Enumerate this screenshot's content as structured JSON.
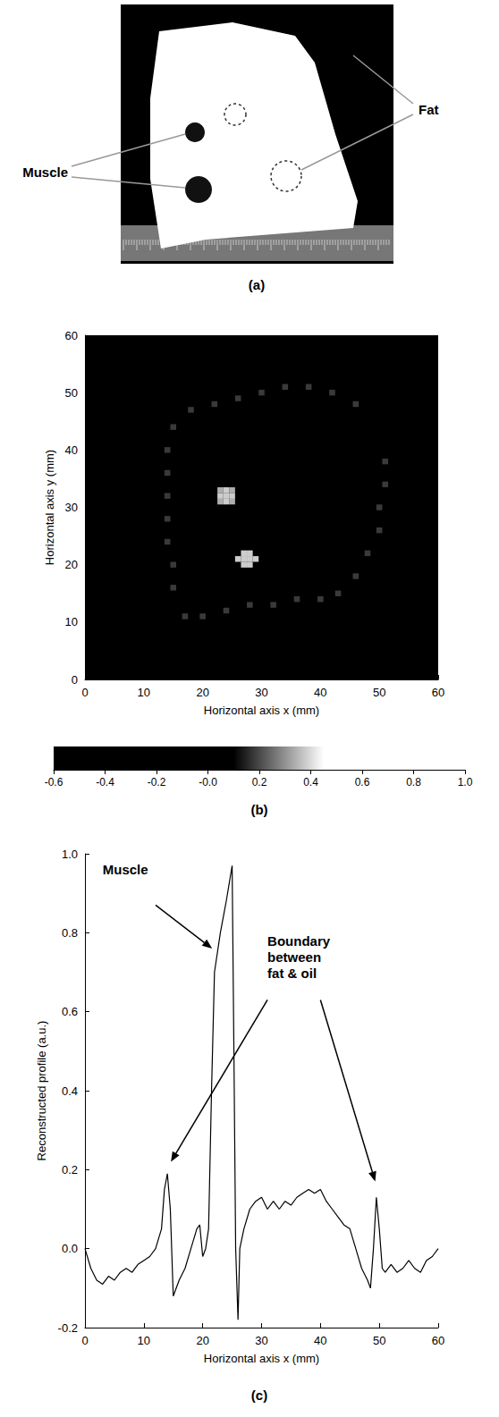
{
  "photo": {
    "label": "(a)",
    "texts": [
      "Muscle",
      "Fat"
    ]
  },
  "chart_data": [
    {
      "label": "(b)",
      "type": "heatmap",
      "x_label": "Horizontal axis x (mm)",
      "y_label": "Horizontal axis y (mm)",
      "xlim": [
        0,
        60
      ],
      "ylim": [
        0,
        60
      ],
      "xticks": [
        0,
        10,
        20,
        30,
        40,
        50,
        60
      ],
      "yticks": [
        0,
        10,
        20,
        30,
        40,
        50,
        60
      ],
      "cells": [
        [
          23,
          31,
          0.4
        ],
        [
          24,
          31,
          0.7
        ],
        [
          25,
          31,
          0.4
        ],
        [
          23,
          32,
          0.7
        ],
        [
          24,
          32,
          1.0
        ],
        [
          25,
          32,
          0.7
        ],
        [
          23,
          33,
          0.4
        ],
        [
          24,
          33,
          0.7
        ],
        [
          25,
          33,
          0.4
        ],
        [
          26,
          21,
          0.6
        ],
        [
          27,
          20,
          0.5
        ],
        [
          28,
          20,
          0.5
        ],
        [
          27,
          21,
          1.0
        ],
        [
          28,
          21,
          1.0
        ],
        [
          29,
          21,
          0.6
        ],
        [
          27,
          22,
          0.5
        ],
        [
          28,
          22,
          0.5
        ],
        [
          15,
          44,
          0.2
        ],
        [
          14,
          40,
          0.2
        ],
        [
          14,
          36,
          0.2
        ],
        [
          14,
          32,
          0.2
        ],
        [
          14,
          28,
          0.2
        ],
        [
          14,
          24,
          0.2
        ],
        [
          15,
          20,
          0.2
        ],
        [
          15,
          16,
          0.2
        ],
        [
          17,
          11,
          0.2
        ],
        [
          20,
          11,
          0.2
        ],
        [
          24,
          12,
          0.2
        ],
        [
          28,
          13,
          0.2
        ],
        [
          32,
          13,
          0.2
        ],
        [
          36,
          14,
          0.2
        ],
        [
          40,
          14,
          0.2
        ],
        [
          43,
          15,
          0.2
        ],
        [
          46,
          18,
          0.2
        ],
        [
          48,
          22,
          0.2
        ],
        [
          50,
          26,
          0.2
        ],
        [
          50,
          30,
          0.2
        ],
        [
          51,
          34,
          0.2
        ],
        [
          51,
          38,
          0.2
        ],
        [
          18,
          47,
          0.2
        ],
        [
          22,
          48,
          0.2
        ],
        [
          26,
          49,
          0.2
        ],
        [
          30,
          50,
          0.2
        ],
        [
          34,
          51,
          0.2
        ],
        [
          38,
          51,
          0.2
        ],
        [
          42,
          50,
          0.2
        ],
        [
          46,
          48,
          0.2
        ]
      ],
      "colorbar": {
        "range": [
          -0.6,
          1.0
        ],
        "ticks": [
          -0.6,
          -0.4,
          -0.2,
          {
            "value": 0,
            "label": "-0.0"
          },
          0.2,
          0.4,
          0.6,
          0.8,
          {
            "value": 1.0,
            "label": "1.0"
          }
        ],
        "colormap": [
          [
            -0.6,
            "#000000"
          ],
          [
            0.1,
            "#000000"
          ],
          [
            0.45,
            "#ffffff"
          ],
          [
            1.0,
            "#ffffff"
          ]
        ]
      }
    },
    {
      "label": "(c)",
      "type": "line",
      "x_label": "Horizontal axis x (mm)",
      "y_label": "Reconstructed profile (a.u.)",
      "xlim": [
        0,
        60
      ],
      "ylim": [
        -0.2,
        1.0
      ],
      "xticks": [
        0,
        10,
        20,
        30,
        40,
        50,
        60
      ],
      "yticks": [
        -0.2,
        {
          "value": 0,
          "label": "0.0"
        },
        0.2,
        0.4,
        0.6,
        0.8,
        {
          "value": 1.0,
          "label": "1.0"
        }
      ],
      "x": [
        0,
        1,
        2,
        3,
        4,
        5,
        6,
        7,
        8,
        9,
        10,
        11,
        12,
        13,
        13.5,
        14,
        14.5,
        15,
        16,
        17,
        18,
        19,
        19.5,
        20,
        20.5,
        21,
        21.5,
        22,
        23,
        24,
        25,
        25.3,
        25.6,
        26,
        26.3,
        27,
        28,
        29,
        30,
        31,
        32,
        33,
        34,
        35,
        36,
        37,
        38,
        39,
        40,
        41,
        42,
        43,
        44,
        45,
        46,
        47,
        48,
        48.5,
        49,
        49.5,
        50,
        50.5,
        51,
        52,
        53,
        54,
        55,
        56,
        57,
        58,
        59,
        60
      ],
      "values": [
        0.0,
        -0.05,
        -0.08,
        -0.09,
        -0.07,
        -0.08,
        -0.06,
        -0.05,
        -0.06,
        -0.04,
        -0.03,
        -0.02,
        0.0,
        0.05,
        0.15,
        0.19,
        0.1,
        -0.12,
        -0.08,
        -0.05,
        0.0,
        0.05,
        0.06,
        -0.02,
        0.0,
        0.05,
        0.4,
        0.7,
        0.8,
        0.88,
        0.97,
        0.5,
        0.0,
        -0.18,
        0.0,
        0.05,
        0.1,
        0.12,
        0.13,
        0.1,
        0.12,
        0.1,
        0.12,
        0.11,
        0.13,
        0.14,
        0.15,
        0.14,
        0.15,
        0.12,
        0.1,
        0.08,
        0.06,
        0.05,
        0.0,
        -0.05,
        -0.08,
        -0.1,
        0.0,
        0.13,
        0.05,
        -0.05,
        -0.06,
        -0.04,
        -0.06,
        -0.05,
        -0.03,
        -0.05,
        -0.06,
        -0.03,
        -0.02,
        0.0
      ],
      "color": "#000000",
      "annotations": [
        "Muscle",
        "Boundary between fat & oil"
      ]
    }
  ]
}
